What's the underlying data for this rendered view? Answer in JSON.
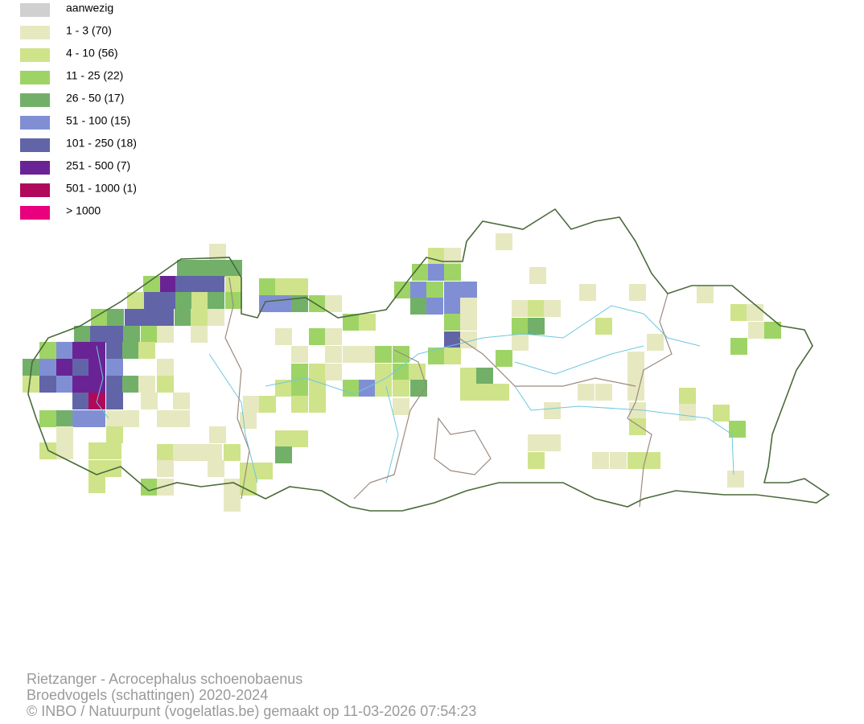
{
  "legend": [
    {
      "label": "aanwezig",
      "color": "#d0d0d0"
    },
    {
      "label": "1 - 3 (70)",
      "color": "#e6e8c0"
    },
    {
      "label": "4 - 10 (56)",
      "color": "#cfe38a"
    },
    {
      "label": "11 - 25 (22)",
      "color": "#9ed466"
    },
    {
      "label": "26 - 50 (17)",
      "color": "#72b06a"
    },
    {
      "label": "51 - 100 (15)",
      "color": "#808fd4"
    },
    {
      "label": "101 - 250 (18)",
      "color": "#6264a8"
    },
    {
      "label": "251 - 500 (7)",
      "color": "#6a2394"
    },
    {
      "label": "501 - 1000 (1)",
      "color": "#b0085a"
    },
    {
      "label": "> 1000",
      "color": "#e8007e"
    }
  ],
  "footer": [
    "Rietzanger - Acrocephalus schoenobaenus",
    "Broedvogels (schattingen) 2020-2024",
    "© INBO / Natuurpunt (vogelatlas.be) gemaakt op 11-03-2026 07:54:23"
  ]
}
